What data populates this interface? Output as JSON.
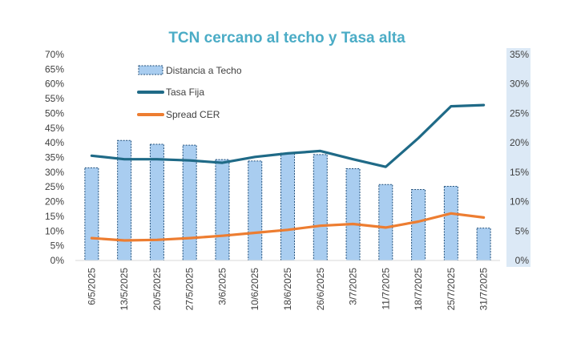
{
  "colors": {
    "bar_fill": "#a9cdf0",
    "bar_stroke": "#1f4e79",
    "tasa_fija": "#1f6a87",
    "spread_cer": "#ed7d31",
    "title": "#4bacc6",
    "right_axis_bg": "#dce9f6",
    "tick_text": "#404040"
  },
  "chart_data": {
    "type": "bar",
    "title": "TCN cercano al techo y Tasa alta",
    "categories": [
      "6/5/2025",
      "13/5/2025",
      "20/5/2025",
      "27/5/2025",
      "3/6/2025",
      "10/6/2025",
      "18/6/2025",
      "26/6/2025",
      "3/7/2025",
      "11/7/2025",
      "18/7/2025",
      "25/7/2025",
      "31/7/2025"
    ],
    "left_axis": {
      "ylim": [
        0,
        70
      ],
      "step": 5,
      "ticks": [
        "0%",
        "5%",
        "10%",
        "15%",
        "20%",
        "25%",
        "30%",
        "35%",
        "40%",
        "45%",
        "50%",
        "55%",
        "60%",
        "65%",
        "70%"
      ]
    },
    "right_axis": {
      "ylim": [
        0,
        35
      ],
      "step": 5,
      "ticks": [
        "0%",
        "5%",
        "10%",
        "15%",
        "20%",
        "25%",
        "30%",
        "35%"
      ]
    },
    "series": [
      {
        "name": "Distancia a Techo",
        "type": "bar",
        "axis": "left",
        "values": [
          31.5,
          40.8,
          39.5,
          39.2,
          34.3,
          33.8,
          36.5,
          36.0,
          31.2,
          25.8,
          24.1,
          25.2,
          11.0
        ]
      },
      {
        "name": "Tasa Fija",
        "type": "line",
        "axis": "right",
        "values": [
          17.8,
          17.2,
          17.2,
          17.0,
          16.6,
          17.6,
          18.2,
          18.6,
          17.2,
          15.9,
          20.8,
          26.2,
          26.4
        ]
      },
      {
        "name": "Spread CER",
        "type": "line",
        "axis": "right",
        "values": [
          3.8,
          3.4,
          3.5,
          3.8,
          4.2,
          4.7,
          5.2,
          5.9,
          6.2,
          5.6,
          6.6,
          8.0,
          7.3
        ]
      }
    ],
    "legend_position": "top-left",
    "grid": false
  }
}
